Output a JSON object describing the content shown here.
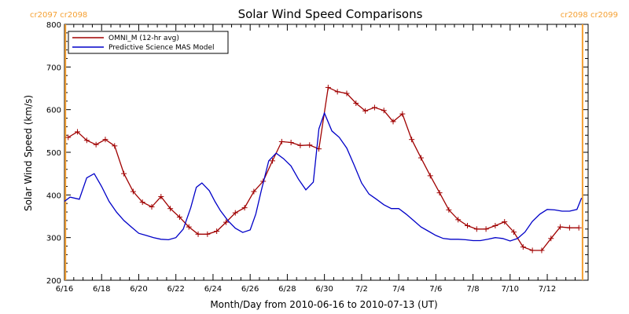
{
  "colors": {
    "omni": "#a00000",
    "mas": "#0000c8",
    "rotation": "#f5a032",
    "axis": "#000000"
  },
  "rotation_markers": {
    "left_label": "cr2097 cr2098",
    "right_label": "cr2098 cr2099",
    "positions": [
      0.05,
      27.9
    ]
  },
  "chart_data": {
    "type": "line",
    "title": "Solar Wind Speed Comparisons",
    "xlabel": "Month/Day from 2010-06-16 to 2010-07-13 (UT)",
    "ylabel": "Solar Wind Speed (km/s)",
    "xlim": [
      0,
      28.2
    ],
    "ylim": [
      200,
      800
    ],
    "yticks": [
      200,
      300,
      400,
      500,
      600,
      700,
      800
    ],
    "xticks": [
      {
        "x": 0,
        "label": "6/16"
      },
      {
        "x": 2,
        "label": "6/18"
      },
      {
        "x": 4,
        "label": "6/20"
      },
      {
        "x": 6,
        "label": "6/22"
      },
      {
        "x": 8,
        "label": "6/24"
      },
      {
        "x": 10,
        "label": "6/26"
      },
      {
        "x": 12,
        "label": "6/28"
      },
      {
        "x": 14,
        "label": "6/30"
      },
      {
        "x": 16,
        "label": "7/2"
      },
      {
        "x": 18,
        "label": "7/4"
      },
      {
        "x": 20,
        "label": "7/6"
      },
      {
        "x": 22,
        "label": "7/8"
      },
      {
        "x": 24,
        "label": "7/10"
      },
      {
        "x": 26,
        "label": "7/12"
      }
    ],
    "legend_position": "top-left",
    "series": [
      {
        "name": "OMNI_M (12-hr avg)",
        "color": "#a00000",
        "marker": "plus",
        "x": [
          0.2,
          0.7,
          1.2,
          1.7,
          2.2,
          2.7,
          3.2,
          3.7,
          4.2,
          4.7,
          5.2,
          5.7,
          6.2,
          6.7,
          7.2,
          7.7,
          8.2,
          8.7,
          9.2,
          9.7,
          10.2,
          10.7,
          11.2,
          11.7,
          12.2,
          12.7,
          13.2,
          13.7,
          14.2,
          14.7,
          15.2,
          15.7,
          16.2,
          16.7,
          17.2,
          17.7,
          18.2,
          18.7,
          19.2,
          19.7,
          20.2,
          20.7,
          21.2,
          21.7,
          22.2,
          22.7,
          23.2,
          23.7,
          24.2,
          24.7,
          25.2,
          25.7,
          26.2,
          26.7,
          27.2,
          27.7
        ],
        "y": [
          535,
          548,
          528,
          518,
          530,
          515,
          450,
          408,
          383,
          372,
          396,
          368,
          348,
          325,
          308,
          308,
          315,
          336,
          358,
          370,
          408,
          432,
          480,
          525,
          523,
          516,
          517,
          508,
          652,
          642,
          638,
          615,
          597,
          605,
          598,
          572,
          590,
          530,
          487,
          445,
          405,
          365,
          342,
          328,
          320,
          320,
          328,
          337,
          313,
          278,
          270,
          270,
          298,
          325,
          323,
          323
        ]
      },
      {
        "name": "Predictive Science MAS Model",
        "color": "#0000c8",
        "marker": "none",
        "x": [
          0.0,
          0.3,
          0.8,
          1.2,
          1.6,
          2.0,
          2.4,
          2.8,
          3.2,
          3.6,
          4.0,
          4.4,
          4.8,
          5.2,
          5.6,
          6.0,
          6.4,
          6.8,
          7.1,
          7.4,
          7.8,
          8.1,
          8.4,
          8.8,
          9.2,
          9.6,
          10.0,
          10.3,
          10.6,
          11.0,
          11.4,
          11.8,
          12.2,
          12.6,
          13.0,
          13.4,
          13.7,
          14.0,
          14.4,
          14.8,
          15.2,
          15.6,
          16.0,
          16.4,
          16.8,
          17.2,
          17.6,
          18.0,
          18.4,
          18.8,
          19.2,
          19.6,
          20.0,
          20.4,
          20.8,
          21.2,
          21.6,
          22.0,
          22.4,
          22.8,
          23.2,
          23.6,
          24.0,
          24.4,
          24.8,
          25.2,
          25.6,
          26.0,
          26.4,
          26.8,
          27.2,
          27.6,
          27.85
        ],
        "y": [
          385,
          395,
          390,
          440,
          450,
          420,
          385,
          360,
          340,
          325,
          310,
          305,
          300,
          296,
          295,
          300,
          320,
          370,
          418,
          428,
          410,
          385,
          363,
          340,
          322,
          312,
          318,
          355,
          410,
          480,
          498,
          485,
          468,
          437,
          412,
          430,
          555,
          592,
          550,
          535,
          510,
          470,
          428,
          402,
          390,
          377,
          368,
          368,
          355,
          340,
          325,
          315,
          305,
          298,
          296,
          296,
          295,
          293,
          293,
          296,
          300,
          298,
          292,
          298,
          313,
          338,
          355,
          366,
          365,
          362,
          362,
          366,
          393
        ]
      }
    ]
  }
}
